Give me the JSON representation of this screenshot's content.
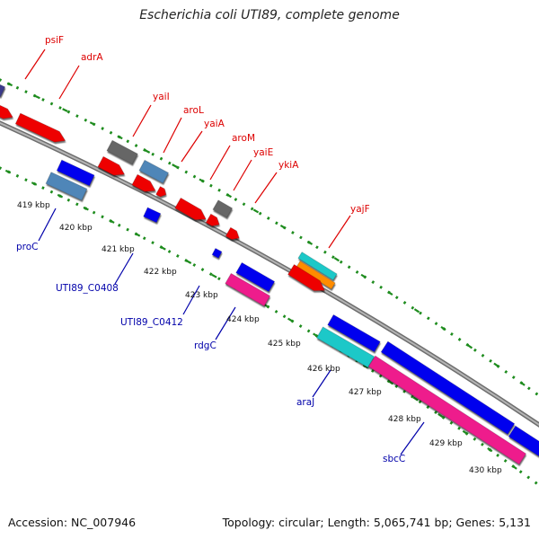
{
  "title": "Escherichia coli UTI89, complete genome",
  "footer": {
    "accession": "Accession: NC_007946",
    "summary": "Topology: circular; Length: 5,065,741 bp; Genes: 5,131"
  },
  "colors": {
    "backbone": "#8a8a8a",
    "tick": "#1e8c1e",
    "forward_label": "#dd0000",
    "reverse_label": "#0000aa"
  },
  "ruler_labels": [
    "419 kbp",
    "420 kbp",
    "421 kbp",
    "422 kbp",
    "423 kbp",
    "424 kbp",
    "425 kbp",
    "426 kbp",
    "427 kbp",
    "428 kbp",
    "429 kbp",
    "430 kbp"
  ],
  "forward_genes": [
    "psiF",
    "adrA",
    "yaiI",
    "aroL",
    "yaiA",
    "aroM",
    "yaiE",
    "ykiA",
    "yajF"
  ],
  "reverse_genes": [
    "proC",
    "UTI89_C0408",
    "UTI89_C0412",
    "rdgC",
    "araJ",
    "sbcC"
  ]
}
